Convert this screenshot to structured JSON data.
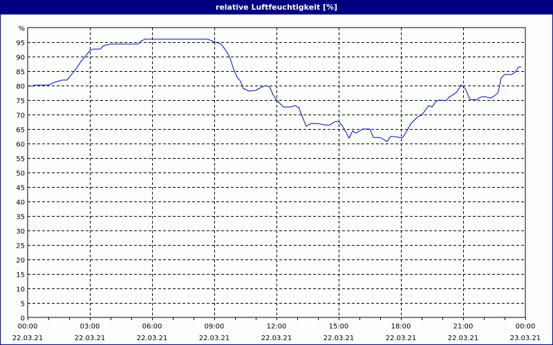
{
  "window": {
    "title": "relative Luftfeuchtigkeit [%]",
    "colors": {
      "titlebar": "#000080",
      "title_text": "#ffffff",
      "background": "#fbfefb",
      "line": "#0000c8",
      "grid": "#000000"
    }
  },
  "chart_data": {
    "type": "line",
    "title": "relative Luftfeuchtigkeit [%]",
    "xlabel": "",
    "ylabel": "%",
    "ylim": [
      0,
      100
    ],
    "xlim_hours": [
      0,
      24
    ],
    "grid": true,
    "legend": null,
    "y_ticks": [
      "0",
      "5",
      "10",
      "15",
      "20",
      "25",
      "30",
      "35",
      "40",
      "45",
      "50",
      "55",
      "60",
      "65",
      "70",
      "75",
      "80",
      "85",
      "90",
      "95",
      "%"
    ],
    "x_ticks": [
      {
        "time": "00:00",
        "date": "22.03.21"
      },
      {
        "time": "03:00",
        "date": "22.03.21"
      },
      {
        "time": "06:00",
        "date": "22.03.21"
      },
      {
        "time": "09:00",
        "date": "22.03.21"
      },
      {
        "time": "12:00",
        "date": "22.03.21"
      },
      {
        "time": "15:00",
        "date": "22.03.21"
      },
      {
        "time": "18:00",
        "date": "22.03.21"
      },
      {
        "time": "21:00",
        "date": "22.03.21"
      },
      {
        "time": "00:00",
        "date": "23.03.21"
      }
    ],
    "series": [
      {
        "name": "relative Luftfeuchtigkeit",
        "x_hours": [
          0,
          0.25,
          0.33,
          1.0,
          1.33,
          1.67,
          1.9,
          2.17,
          2.33,
          2.57,
          2.83,
          3.0,
          3.17,
          3.5,
          3.67,
          4.0,
          5.33,
          5.5,
          5.67,
          8.67,
          9.0,
          9.33,
          9.6,
          9.77,
          9.93,
          10.1,
          10.27,
          10.4,
          10.67,
          11.0,
          11.23,
          11.5,
          11.67,
          11.83,
          12.0,
          12.33,
          12.67,
          12.9,
          13.07,
          13.23,
          13.43,
          13.67,
          14.0,
          14.33,
          14.57,
          14.83,
          15.0,
          15.17,
          15.5,
          15.67,
          15.83,
          16.17,
          16.5,
          16.67,
          17.0,
          17.33,
          17.5,
          17.67,
          18.07,
          18.23,
          18.5,
          18.83,
          19.0,
          19.17,
          19.33,
          19.5,
          19.67,
          19.83,
          20.17,
          20.33,
          20.67,
          20.83,
          20.9,
          21.1,
          21.33,
          21.67,
          21.83,
          22.0,
          22.33,
          22.5,
          22.67,
          22.73,
          22.83,
          23.0,
          23.33,
          23.5,
          23.6,
          23.67,
          23.8
        ],
        "values": [
          79.8,
          79.8,
          80.2,
          80.2,
          81.2,
          81.9,
          81.9,
          84.3,
          85.7,
          88.3,
          90.5,
          92.1,
          92.6,
          92.6,
          93.8,
          94.3,
          94.3,
          95.5,
          96.0,
          96.0,
          95.2,
          94.3,
          91.7,
          89.3,
          85.7,
          82.9,
          81.4,
          79.0,
          78.1,
          78.3,
          79.3,
          80.0,
          79.5,
          76.9,
          75.0,
          72.6,
          72.6,
          73.1,
          72.4,
          69.5,
          66.0,
          66.9,
          66.9,
          66.4,
          66.4,
          67.6,
          67.6,
          66.2,
          61.9,
          64.3,
          63.6,
          65.0,
          65.0,
          62.1,
          62.1,
          60.7,
          62.4,
          62.4,
          61.9,
          63.6,
          67.1,
          69.3,
          69.8,
          71.4,
          73.1,
          72.6,
          74.3,
          75.0,
          74.8,
          76.0,
          77.6,
          79.3,
          80.2,
          79.0,
          75.2,
          75.2,
          76.0,
          76.2,
          75.7,
          76.4,
          77.4,
          79.0,
          82.6,
          83.8,
          83.8,
          84.5,
          85.7,
          86.4,
          86.4
        ]
      }
    ]
  }
}
